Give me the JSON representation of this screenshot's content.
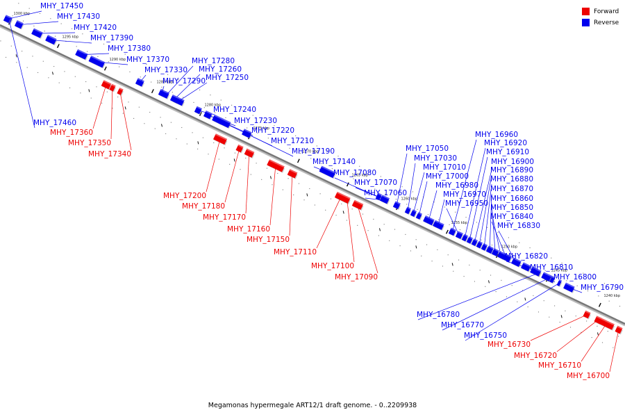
{
  "caption": "Megamonas hypermegale ART12/1 draft genome. - 0..2209938",
  "legend": [
    {
      "label": "Forward",
      "color": "#ee0000"
    },
    {
      "label": "Reverse",
      "color": "#0000ee"
    }
  ],
  "colors": {
    "forward": "#ee0000",
    "reverse": "#0000ee",
    "axis": "#777777"
  },
  "ticks": [
    "1300 kbp",
    "1295 kbp",
    "1290 kbp",
    "1285 kbp",
    "1280 kbp",
    "1275 kbp",
    "1270 kbp",
    "1265 kbp",
    "1260 kbp",
    "1255 kbp",
    "1250 kbp",
    "1245 kbp",
    "1240 kbp"
  ],
  "genes": [
    {
      "id": "MHY_17460",
      "strand": "reverse"
    },
    {
      "id": "MHY_17450",
      "strand": "reverse"
    },
    {
      "id": "MHY_17430",
      "strand": "reverse"
    },
    {
      "id": "MHY_17420",
      "strand": "reverse"
    },
    {
      "id": "MHY_17390",
      "strand": "reverse"
    },
    {
      "id": "MHY_17380",
      "strand": "reverse"
    },
    {
      "id": "MHY_17370",
      "strand": "reverse"
    },
    {
      "id": "MHY_17360",
      "strand": "forward"
    },
    {
      "id": "MHY_17350",
      "strand": "forward"
    },
    {
      "id": "MHY_17340",
      "strand": "forward"
    },
    {
      "id": "MHY_17330",
      "strand": "reverse"
    },
    {
      "id": "MHY_17290",
      "strand": "reverse"
    },
    {
      "id": "MHY_17280",
      "strand": "reverse"
    },
    {
      "id": "MHY_17260",
      "strand": "reverse"
    },
    {
      "id": "MHY_17250",
      "strand": "reverse"
    },
    {
      "id": "MHY_17240",
      "strand": "reverse"
    },
    {
      "id": "MHY_17230",
      "strand": "reverse"
    },
    {
      "id": "MHY_17220",
      "strand": "reverse"
    },
    {
      "id": "MHY_17210",
      "strand": "reverse"
    },
    {
      "id": "MHY_17190",
      "strand": "reverse"
    },
    {
      "id": "MHY_17200",
      "strand": "forward"
    },
    {
      "id": "MHY_17180",
      "strand": "forward"
    },
    {
      "id": "MHY_17170",
      "strand": "forward"
    },
    {
      "id": "MHY_17160",
      "strand": "forward"
    },
    {
      "id": "MHY_17150",
      "strand": "forward"
    },
    {
      "id": "MHY_17140",
      "strand": "reverse"
    },
    {
      "id": "MHY_17110",
      "strand": "forward"
    },
    {
      "id": "MHY_17100",
      "strand": "forward"
    },
    {
      "id": "MHY_17090",
      "strand": "forward"
    },
    {
      "id": "MHY_17080",
      "strand": "reverse"
    },
    {
      "id": "MHY_17070",
      "strand": "reverse"
    },
    {
      "id": "MHY_17060",
      "strand": "reverse"
    },
    {
      "id": "MHY_17050",
      "strand": "reverse"
    },
    {
      "id": "MHY_17030",
      "strand": "reverse"
    },
    {
      "id": "MHY_17010",
      "strand": "reverse"
    },
    {
      "id": "MHY_17000",
      "strand": "reverse"
    },
    {
      "id": "MHY_16980",
      "strand": "reverse"
    },
    {
      "id": "MHY_16970",
      "strand": "reverse"
    },
    {
      "id": "MHY_16960",
      "strand": "reverse"
    },
    {
      "id": "MHY_16950",
      "strand": "reverse"
    },
    {
      "id": "MHY_16920",
      "strand": "reverse"
    },
    {
      "id": "MHY_16910",
      "strand": "reverse"
    },
    {
      "id": "MHY_16900",
      "strand": "reverse"
    },
    {
      "id": "MHY_16890",
      "strand": "reverse"
    },
    {
      "id": "MHY_16880",
      "strand": "reverse"
    },
    {
      "id": "MHY_16870",
      "strand": "reverse"
    },
    {
      "id": "MHY_16860",
      "strand": "reverse"
    },
    {
      "id": "MHY_16850",
      "strand": "reverse"
    },
    {
      "id": "MHY_16840",
      "strand": "reverse"
    },
    {
      "id": "MHY_16830",
      "strand": "reverse"
    },
    {
      "id": "MHY_16820",
      "strand": "reverse"
    },
    {
      "id": "MHY_16810",
      "strand": "reverse"
    },
    {
      "id": "MHY_16800",
      "strand": "reverse"
    },
    {
      "id": "MHY_16790",
      "strand": "reverse"
    },
    {
      "id": "MHY_16780",
      "strand": "reverse"
    },
    {
      "id": "MHY_16770",
      "strand": "reverse"
    },
    {
      "id": "MHY_16750",
      "strand": "reverse"
    },
    {
      "id": "MHY_16730",
      "strand": "forward"
    },
    {
      "id": "MHY_16720",
      "strand": "forward"
    },
    {
      "id": "MHY_16710",
      "strand": "forward"
    },
    {
      "id": "MHY_16700",
      "strand": "forward"
    }
  ]
}
